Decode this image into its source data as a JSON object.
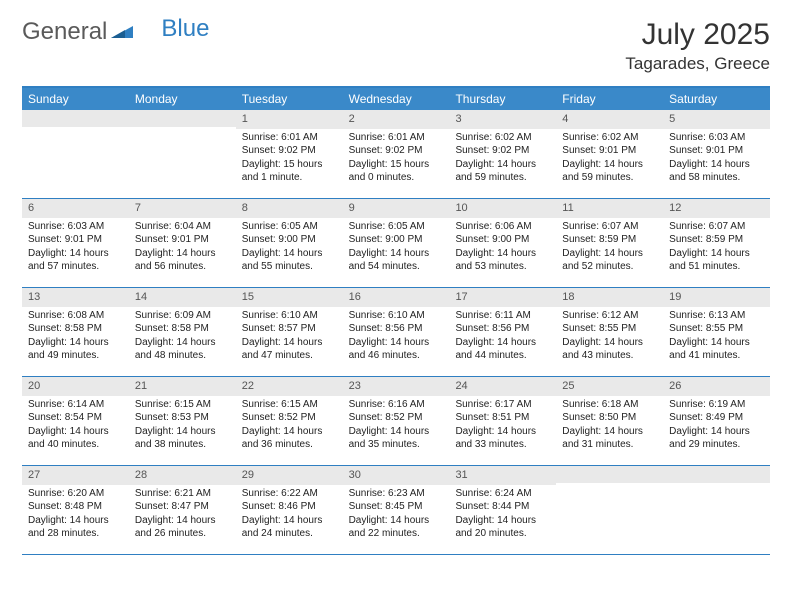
{
  "logo": {
    "text1": "General",
    "text2": "Blue"
  },
  "title": "July 2025",
  "location": "Tagarades, Greece",
  "colors": {
    "header_bg": "#3a89c9",
    "border": "#2f7fc2",
    "daynum_bg": "#e9e9e9",
    "text": "#222222",
    "logo_gray": "#5a5a5a",
    "logo_blue": "#2f7fc2"
  },
  "weekdays": [
    "Sunday",
    "Monday",
    "Tuesday",
    "Wednesday",
    "Thursday",
    "Friday",
    "Saturday"
  ],
  "weeks": [
    [
      {
        "n": "",
        "sr": "",
        "ss": "",
        "dl": ""
      },
      {
        "n": "",
        "sr": "",
        "ss": "",
        "dl": ""
      },
      {
        "n": "1",
        "sr": "Sunrise: 6:01 AM",
        "ss": "Sunset: 9:02 PM",
        "dl": "Daylight: 15 hours and 1 minute."
      },
      {
        "n": "2",
        "sr": "Sunrise: 6:01 AM",
        "ss": "Sunset: 9:02 PM",
        "dl": "Daylight: 15 hours and 0 minutes."
      },
      {
        "n": "3",
        "sr": "Sunrise: 6:02 AM",
        "ss": "Sunset: 9:02 PM",
        "dl": "Daylight: 14 hours and 59 minutes."
      },
      {
        "n": "4",
        "sr": "Sunrise: 6:02 AM",
        "ss": "Sunset: 9:01 PM",
        "dl": "Daylight: 14 hours and 59 minutes."
      },
      {
        "n": "5",
        "sr": "Sunrise: 6:03 AM",
        "ss": "Sunset: 9:01 PM",
        "dl": "Daylight: 14 hours and 58 minutes."
      }
    ],
    [
      {
        "n": "6",
        "sr": "Sunrise: 6:03 AM",
        "ss": "Sunset: 9:01 PM",
        "dl": "Daylight: 14 hours and 57 minutes."
      },
      {
        "n": "7",
        "sr": "Sunrise: 6:04 AM",
        "ss": "Sunset: 9:01 PM",
        "dl": "Daylight: 14 hours and 56 minutes."
      },
      {
        "n": "8",
        "sr": "Sunrise: 6:05 AM",
        "ss": "Sunset: 9:00 PM",
        "dl": "Daylight: 14 hours and 55 minutes."
      },
      {
        "n": "9",
        "sr": "Sunrise: 6:05 AM",
        "ss": "Sunset: 9:00 PM",
        "dl": "Daylight: 14 hours and 54 minutes."
      },
      {
        "n": "10",
        "sr": "Sunrise: 6:06 AM",
        "ss": "Sunset: 9:00 PM",
        "dl": "Daylight: 14 hours and 53 minutes."
      },
      {
        "n": "11",
        "sr": "Sunrise: 6:07 AM",
        "ss": "Sunset: 8:59 PM",
        "dl": "Daylight: 14 hours and 52 minutes."
      },
      {
        "n": "12",
        "sr": "Sunrise: 6:07 AM",
        "ss": "Sunset: 8:59 PM",
        "dl": "Daylight: 14 hours and 51 minutes."
      }
    ],
    [
      {
        "n": "13",
        "sr": "Sunrise: 6:08 AM",
        "ss": "Sunset: 8:58 PM",
        "dl": "Daylight: 14 hours and 49 minutes."
      },
      {
        "n": "14",
        "sr": "Sunrise: 6:09 AM",
        "ss": "Sunset: 8:58 PM",
        "dl": "Daylight: 14 hours and 48 minutes."
      },
      {
        "n": "15",
        "sr": "Sunrise: 6:10 AM",
        "ss": "Sunset: 8:57 PM",
        "dl": "Daylight: 14 hours and 47 minutes."
      },
      {
        "n": "16",
        "sr": "Sunrise: 6:10 AM",
        "ss": "Sunset: 8:56 PM",
        "dl": "Daylight: 14 hours and 46 minutes."
      },
      {
        "n": "17",
        "sr": "Sunrise: 6:11 AM",
        "ss": "Sunset: 8:56 PM",
        "dl": "Daylight: 14 hours and 44 minutes."
      },
      {
        "n": "18",
        "sr": "Sunrise: 6:12 AM",
        "ss": "Sunset: 8:55 PM",
        "dl": "Daylight: 14 hours and 43 minutes."
      },
      {
        "n": "19",
        "sr": "Sunrise: 6:13 AM",
        "ss": "Sunset: 8:55 PM",
        "dl": "Daylight: 14 hours and 41 minutes."
      }
    ],
    [
      {
        "n": "20",
        "sr": "Sunrise: 6:14 AM",
        "ss": "Sunset: 8:54 PM",
        "dl": "Daylight: 14 hours and 40 minutes."
      },
      {
        "n": "21",
        "sr": "Sunrise: 6:15 AM",
        "ss": "Sunset: 8:53 PM",
        "dl": "Daylight: 14 hours and 38 minutes."
      },
      {
        "n": "22",
        "sr": "Sunrise: 6:15 AM",
        "ss": "Sunset: 8:52 PM",
        "dl": "Daylight: 14 hours and 36 minutes."
      },
      {
        "n": "23",
        "sr": "Sunrise: 6:16 AM",
        "ss": "Sunset: 8:52 PM",
        "dl": "Daylight: 14 hours and 35 minutes."
      },
      {
        "n": "24",
        "sr": "Sunrise: 6:17 AM",
        "ss": "Sunset: 8:51 PM",
        "dl": "Daylight: 14 hours and 33 minutes."
      },
      {
        "n": "25",
        "sr": "Sunrise: 6:18 AM",
        "ss": "Sunset: 8:50 PM",
        "dl": "Daylight: 14 hours and 31 minutes."
      },
      {
        "n": "26",
        "sr": "Sunrise: 6:19 AM",
        "ss": "Sunset: 8:49 PM",
        "dl": "Daylight: 14 hours and 29 minutes."
      }
    ],
    [
      {
        "n": "27",
        "sr": "Sunrise: 6:20 AM",
        "ss": "Sunset: 8:48 PM",
        "dl": "Daylight: 14 hours and 28 minutes."
      },
      {
        "n": "28",
        "sr": "Sunrise: 6:21 AM",
        "ss": "Sunset: 8:47 PM",
        "dl": "Daylight: 14 hours and 26 minutes."
      },
      {
        "n": "29",
        "sr": "Sunrise: 6:22 AM",
        "ss": "Sunset: 8:46 PM",
        "dl": "Daylight: 14 hours and 24 minutes."
      },
      {
        "n": "30",
        "sr": "Sunrise: 6:23 AM",
        "ss": "Sunset: 8:45 PM",
        "dl": "Daylight: 14 hours and 22 minutes."
      },
      {
        "n": "31",
        "sr": "Sunrise: 6:24 AM",
        "ss": "Sunset: 8:44 PM",
        "dl": "Daylight: 14 hours and 20 minutes."
      },
      {
        "n": "",
        "sr": "",
        "ss": "",
        "dl": ""
      },
      {
        "n": "",
        "sr": "",
        "ss": "",
        "dl": ""
      }
    ]
  ]
}
